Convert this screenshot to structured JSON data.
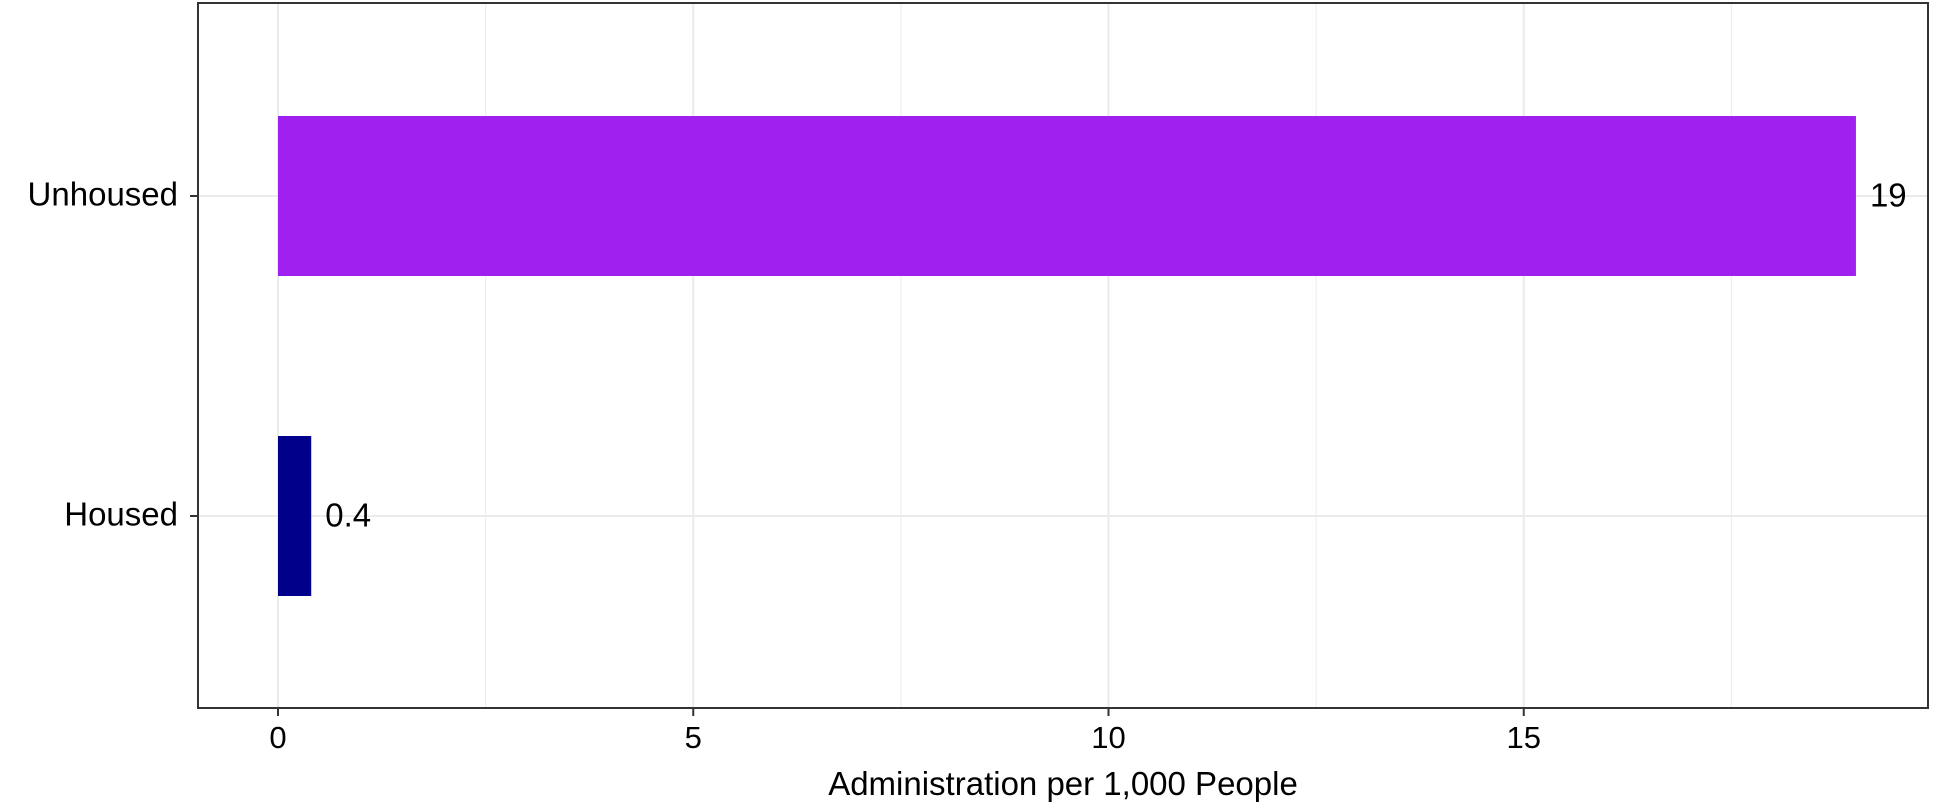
{
  "chart_data": {
    "type": "bar",
    "orientation": "horizontal",
    "categories": [
      "Housed",
      "Unhoused"
    ],
    "values": [
      0.4,
      19
    ],
    "value_labels": [
      "0.4",
      "19"
    ],
    "colors": [
      "#00008B",
      "#A020F0"
    ],
    "title": "",
    "xlabel": "Administration per 1,000 People",
    "ylabel": "",
    "xlim": [
      -0.96,
      19.9
    ],
    "xticks": [
      0,
      5,
      10,
      15
    ],
    "xtick_labels": [
      "0",
      "5",
      "10",
      "15"
    ],
    "grid": true,
    "legend": "none"
  }
}
